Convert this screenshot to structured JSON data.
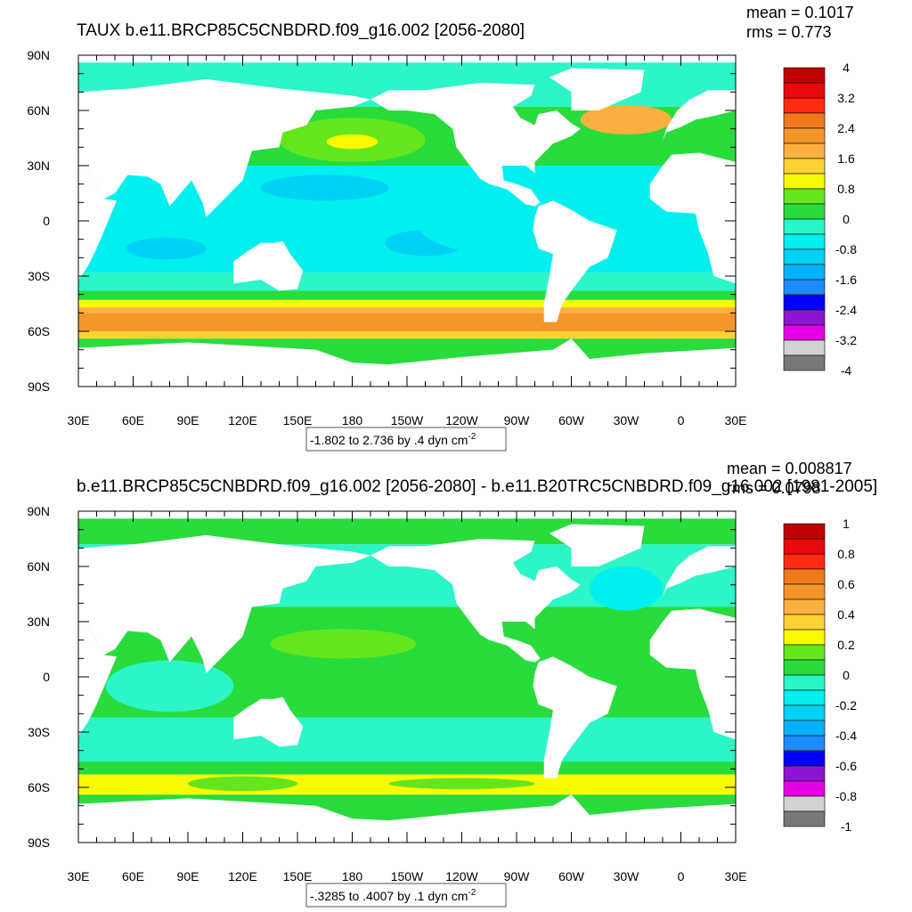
{
  "panels": [
    {
      "title": "TAUX b.e11.BRCP85C5CNBDRD.f09_g16.002 [2056-2080]",
      "mean": "mean = 0.1017",
      "rms": "rms = 0.773",
      "lat_labels": [
        "90N",
        "60N",
        "30N",
        "0",
        "30S",
        "60S",
        "90S"
      ],
      "lon_labels": [
        "30E",
        "60E",
        "90E",
        "120E",
        "150E",
        "180",
        "150W",
        "120W",
        "90W",
        "60W",
        "30W",
        "0",
        "30E"
      ],
      "contour_info": "-1.802 to 2.736 by .4 dyn cm",
      "contour_info_exp": "-2",
      "colorbar": {
        "labels": [
          "4",
          "3.2",
          "2.4",
          "1.6",
          "0.8",
          "0",
          "-0.8",
          "-1.6",
          "-2.4",
          "-3.2",
          "-4"
        ],
        "colors": [
          "#c00000",
          "#e60a0a",
          "#ff2a10",
          "#f07818",
          "#f5962a",
          "#fcb040",
          "#fcd232",
          "#fafa00",
          "#64e61e",
          "#28dc3c",
          "#2cf5c8",
          "#00f0f0",
          "#00d2f5",
          "#00b4ff",
          "#1e8cff",
          "#0000ff",
          "#8c14d2",
          "#e600e6",
          "#d2d2d2",
          "#787878"
        ]
      }
    },
    {
      "title": "b.e11.BRCP85C5CNBDRD.f09_g16.002 [2056-2080] - b.e11.B20TRC5CNBDRD.f09_g16.002 [1981-2005]",
      "mean": "mean = 0.008817",
      "rms": "rms = 0.0798",
      "lat_labels": [
        "90N",
        "60N",
        "30N",
        "0",
        "30S",
        "60S",
        "90S"
      ],
      "lon_labels": [
        "30E",
        "60E",
        "90E",
        "120E",
        "150E",
        "180",
        "150W",
        "120W",
        "90W",
        "60W",
        "30W",
        "0",
        "30E"
      ],
      "contour_info": "-.3285 to .4007 by .1 dyn cm",
      "contour_info_exp": "-2",
      "colorbar": {
        "labels": [
          "1",
          "0.8",
          "0.6",
          "0.4",
          "0.2",
          "0",
          "-0.2",
          "-0.4",
          "-0.6",
          "-0.8",
          "-1"
        ],
        "colors": [
          "#c00000",
          "#e60a0a",
          "#ff2a10",
          "#f07818",
          "#f5962a",
          "#fcb040",
          "#fcd232",
          "#fafa00",
          "#64e61e",
          "#28dc3c",
          "#2cf5c8",
          "#00f0f0",
          "#00d2f5",
          "#00b4ff",
          "#1e8cff",
          "#0000ff",
          "#8c14d2",
          "#e600e6",
          "#d2d2d2",
          "#787878"
        ]
      }
    }
  ]
}
